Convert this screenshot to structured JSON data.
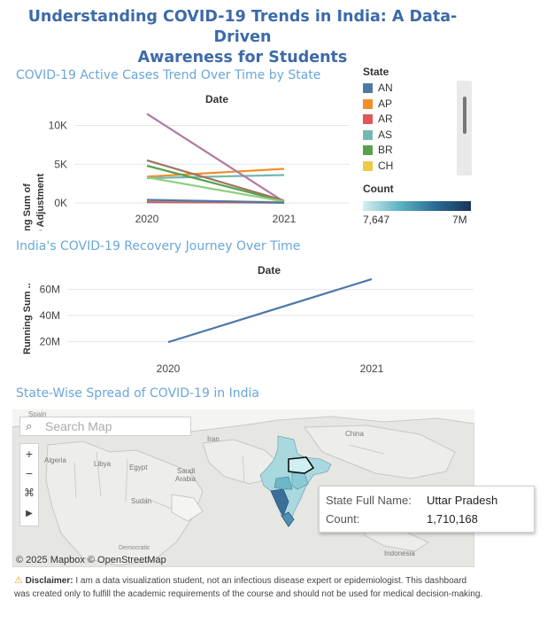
{
  "dashboard": {
    "title_line1": "Understanding COVID-19 Trends in India: A Data-Driven",
    "title_line2": "Awareness for Students"
  },
  "active_chart": {
    "section_title": "COVID-19 Active Cases Trend Over Time by State",
    "column_header": "Date",
    "y_title_line1": "Running Sum of",
    "y_title_line2": "Active Adjustment",
    "y_ticks": [
      "10K",
      "5K",
      "0K"
    ],
    "x_ticks": [
      "2020",
      "2021"
    ]
  },
  "legend": {
    "title": "State",
    "items": [
      {
        "label": "AN",
        "color": "#4e79a7"
      },
      {
        "label": "AP",
        "color": "#f28e2b"
      },
      {
        "label": "AR",
        "color": "#e15759"
      },
      {
        "label": "AS",
        "color": "#76b7b2"
      },
      {
        "label": "BR",
        "color": "#59a14f"
      },
      {
        "label": "CH",
        "color": "#edc948"
      }
    ],
    "count_title": "Count",
    "count_min": "7,647",
    "count_max": "7M"
  },
  "recovery_chart": {
    "section_title": "India's COVID-19 Recovery Journey Over Time",
    "column_header": "Date",
    "y_title": "Running Sum ..",
    "y_ticks": [
      "60M",
      "40M",
      "20M"
    ],
    "x_ticks": [
      "2020",
      "2021"
    ]
  },
  "map": {
    "section_title": "State-Wise Spread of COVID-19 in India",
    "search_placeholder": "Search Map",
    "labels": [
      "Algeria",
      "Libya",
      "Egypt",
      "Saudi",
      "Arabia",
      "Sudan",
      "Iran",
      "China",
      "Spain",
      "Indonesia",
      "Democratic"
    ],
    "tooltip_key1": "State Full Name:",
    "tooltip_val1": "Uttar Pradesh",
    "tooltip_key2": "Count:",
    "tooltip_val2": "1,710,168",
    "copyright": "© 2025 Mapbox © OpenStreetMap"
  },
  "disclaimer": {
    "label": "Disclaimer:",
    "text": " I am a data visualization student, not an infectious disease expert or epidemiologist. This dashboard was created only to fulfill the academic requirements of the course and should not be used for medical decision-making."
  },
  "chart_data": [
    {
      "type": "line",
      "title": "COVID-19 Active Cases Trend Over Time by State",
      "xlabel": "Date",
      "ylabel": "Running Sum of Active Adjustment",
      "x": [
        "2020",
        "2021"
      ],
      "ylim": [
        0,
        12000
      ],
      "series": [
        {
          "name": "AN",
          "color": "#4e79a7",
          "values": [
            100,
            30
          ]
        },
        {
          "name": "AP",
          "color": "#f28e2b",
          "values": [
            3400,
            4400
          ]
        },
        {
          "name": "AR",
          "color": "#e15759",
          "values": [
            150,
            50
          ]
        },
        {
          "name": "AS",
          "color": "#76b7b2",
          "values": [
            3200,
            3600
          ]
        },
        {
          "name": "BR",
          "color": "#59a14f",
          "values": [
            4800,
            200
          ]
        },
        {
          "name": "CH",
          "color": "#edc948",
          "values": [
            350,
            100
          ]
        },
        {
          "color": "#b07aa1",
          "values": [
            11500,
            150
          ]
        },
        {
          "color": "#9c755f",
          "values": [
            5500,
            300
          ]
        },
        {
          "color": "#8cd17d",
          "values": [
            3300,
            200
          ]
        },
        {
          "color": "#4e79a7",
          "values": [
            400,
            50
          ]
        }
      ]
    },
    {
      "type": "line",
      "title": "India's COVID-19 Recovery Journey Over Time",
      "xlabel": "Date",
      "ylabel": "Running Sum ..",
      "x": [
        "2020",
        "2021"
      ],
      "ylim": [
        10000000,
        70000000
      ],
      "series": [
        {
          "color": "#4e79a7",
          "values": [
            19500000,
            68000000
          ]
        }
      ]
    }
  ]
}
